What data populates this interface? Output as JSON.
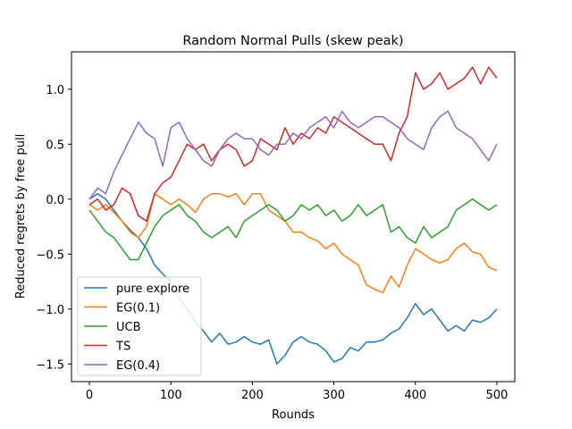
{
  "chart_data": {
    "type": "line",
    "title": "Random Normal Pulls (skew peak)",
    "xlabel": "Rounds",
    "ylabel": "Reduced regrets by free pull",
    "xlim": [
      -22,
      522
    ],
    "ylim": [
      -1.66,
      1.34
    ],
    "xticks": [
      0,
      100,
      200,
      300,
      400,
      500
    ],
    "xtick_labels": [
      "0",
      "100",
      "200",
      "300",
      "400",
      "500"
    ],
    "yticks": [
      -1.5,
      -1.0,
      -0.5,
      0.0,
      0.5,
      1.0
    ],
    "ytick_labels": [
      "−1.5",
      "−1.0",
      "−0.5",
      "0.0",
      "0.5",
      "1.0"
    ],
    "grid": false,
    "legend_position": "lower-left",
    "series": [
      {
        "name": "pure explore",
        "color": "#1f77b4",
        "x": [
          0,
          10,
          20,
          30,
          40,
          50,
          60,
          70,
          80,
          90,
          100,
          110,
          120,
          130,
          140,
          150,
          160,
          170,
          180,
          190,
          200,
          210,
          220,
          230,
          240,
          250,
          260,
          270,
          280,
          290,
          300,
          310,
          320,
          330,
          340,
          350,
          360,
          370,
          380,
          390,
          400,
          410,
          420,
          430,
          440,
          450,
          460,
          470,
          480,
          490,
          500
        ],
        "y": [
          0.0,
          0.05,
          0.0,
          -0.1,
          -0.2,
          -0.28,
          -0.35,
          -0.45,
          -0.6,
          -0.68,
          -0.75,
          -0.9,
          -1.0,
          -1.12,
          -1.2,
          -1.3,
          -1.22,
          -1.32,
          -1.3,
          -1.25,
          -1.3,
          -1.32,
          -1.28,
          -1.5,
          -1.42,
          -1.3,
          -1.25,
          -1.3,
          -1.32,
          -1.38,
          -1.48,
          -1.45,
          -1.35,
          -1.38,
          -1.3,
          -1.3,
          -1.28,
          -1.22,
          -1.18,
          -1.08,
          -0.95,
          -1.05,
          -1.0,
          -1.1,
          -1.2,
          -1.15,
          -1.2,
          -1.1,
          -1.12,
          -1.08,
          -1.0
        ]
      },
      {
        "name": "EG(0.1)",
        "color": "#ff7f0e",
        "x": [
          0,
          10,
          20,
          30,
          40,
          50,
          60,
          70,
          80,
          90,
          100,
          110,
          120,
          130,
          140,
          150,
          160,
          170,
          180,
          190,
          200,
          210,
          220,
          230,
          240,
          250,
          260,
          270,
          280,
          290,
          300,
          310,
          320,
          330,
          340,
          350,
          360,
          370,
          380,
          390,
          400,
          410,
          420,
          430,
          440,
          450,
          460,
          470,
          480,
          490,
          500
        ],
        "y": [
          -0.05,
          -0.1,
          -0.05,
          -0.12,
          -0.2,
          -0.3,
          -0.35,
          -0.25,
          0.05,
          0.0,
          -0.05,
          0.0,
          -0.05,
          -0.12,
          0.0,
          0.05,
          0.05,
          0.02,
          0.05,
          -0.05,
          0.05,
          0.05,
          -0.1,
          -0.15,
          -0.2,
          -0.3,
          -0.3,
          -0.35,
          -0.38,
          -0.45,
          -0.4,
          -0.5,
          -0.55,
          -0.6,
          -0.78,
          -0.82,
          -0.85,
          -0.7,
          -0.8,
          -0.6,
          -0.45,
          -0.5,
          -0.55,
          -0.58,
          -0.55,
          -0.45,
          -0.4,
          -0.48,
          -0.5,
          -0.62,
          -0.65
        ]
      },
      {
        "name": "UCB",
        "color": "#2ca02c",
        "x": [
          0,
          10,
          20,
          30,
          40,
          50,
          60,
          70,
          80,
          90,
          100,
          110,
          120,
          130,
          140,
          150,
          160,
          170,
          180,
          190,
          200,
          210,
          220,
          230,
          240,
          250,
          260,
          270,
          280,
          290,
          300,
          310,
          320,
          330,
          340,
          350,
          360,
          370,
          380,
          390,
          400,
          410,
          420,
          430,
          440,
          450,
          460,
          470,
          480,
          490,
          500
        ],
        "y": [
          -0.1,
          -0.2,
          -0.3,
          -0.35,
          -0.45,
          -0.55,
          -0.55,
          -0.4,
          -0.25,
          -0.15,
          -0.1,
          -0.05,
          -0.15,
          -0.2,
          -0.3,
          -0.35,
          -0.3,
          -0.25,
          -0.35,
          -0.2,
          -0.15,
          -0.1,
          -0.05,
          -0.1,
          -0.2,
          -0.15,
          -0.05,
          -0.1,
          -0.05,
          -0.15,
          -0.1,
          -0.2,
          -0.15,
          -0.05,
          -0.15,
          -0.1,
          -0.05,
          -0.3,
          -0.25,
          -0.35,
          -0.4,
          -0.25,
          -0.35,
          -0.3,
          -0.25,
          -0.1,
          -0.05,
          0.0,
          -0.05,
          -0.1,
          -0.05
        ]
      },
      {
        "name": "TS",
        "color": "#d62728",
        "x": [
          0,
          10,
          20,
          30,
          40,
          50,
          60,
          70,
          80,
          90,
          100,
          110,
          120,
          130,
          140,
          150,
          160,
          170,
          180,
          190,
          200,
          210,
          220,
          230,
          240,
          250,
          260,
          270,
          280,
          290,
          300,
          310,
          320,
          330,
          340,
          350,
          360,
          370,
          380,
          390,
          400,
          410,
          420,
          430,
          440,
          450,
          460,
          470,
          480,
          490,
          500
        ],
        "y": [
          -0.05,
          0.0,
          -0.1,
          -0.05,
          0.1,
          0.05,
          -0.15,
          -0.2,
          0.05,
          0.15,
          0.2,
          0.35,
          0.5,
          0.45,
          0.5,
          0.35,
          0.45,
          0.5,
          0.45,
          0.3,
          0.35,
          0.55,
          0.5,
          0.45,
          0.65,
          0.5,
          0.6,
          0.55,
          0.65,
          0.6,
          0.75,
          0.7,
          0.65,
          0.6,
          0.55,
          0.5,
          0.5,
          0.35,
          0.6,
          0.75,
          1.15,
          1.0,
          1.05,
          1.15,
          1.0,
          1.05,
          1.1,
          1.2,
          1.05,
          1.2,
          1.1
        ]
      },
      {
        "name": "EG(0.4)",
        "color": "#9467bd",
        "x": [
          0,
          10,
          20,
          30,
          40,
          50,
          60,
          70,
          80,
          90,
          100,
          110,
          120,
          130,
          140,
          150,
          160,
          170,
          180,
          190,
          200,
          210,
          220,
          230,
          240,
          250,
          260,
          270,
          280,
          290,
          300,
          310,
          320,
          330,
          340,
          350,
          360,
          370,
          380,
          390,
          400,
          410,
          420,
          430,
          440,
          450,
          460,
          470,
          480,
          490,
          500
        ],
        "y": [
          0.0,
          0.1,
          0.05,
          0.25,
          0.4,
          0.55,
          0.7,
          0.6,
          0.55,
          0.3,
          0.65,
          0.7,
          0.55,
          0.45,
          0.35,
          0.3,
          0.45,
          0.55,
          0.6,
          0.55,
          0.55,
          0.45,
          0.4,
          0.5,
          0.5,
          0.6,
          0.55,
          0.65,
          0.7,
          0.75,
          0.65,
          0.8,
          0.7,
          0.65,
          0.7,
          0.75,
          0.75,
          0.7,
          0.65,
          0.55,
          0.5,
          0.45,
          0.65,
          0.75,
          0.8,
          0.65,
          0.6,
          0.55,
          0.45,
          0.35,
          0.5
        ]
      }
    ]
  }
}
